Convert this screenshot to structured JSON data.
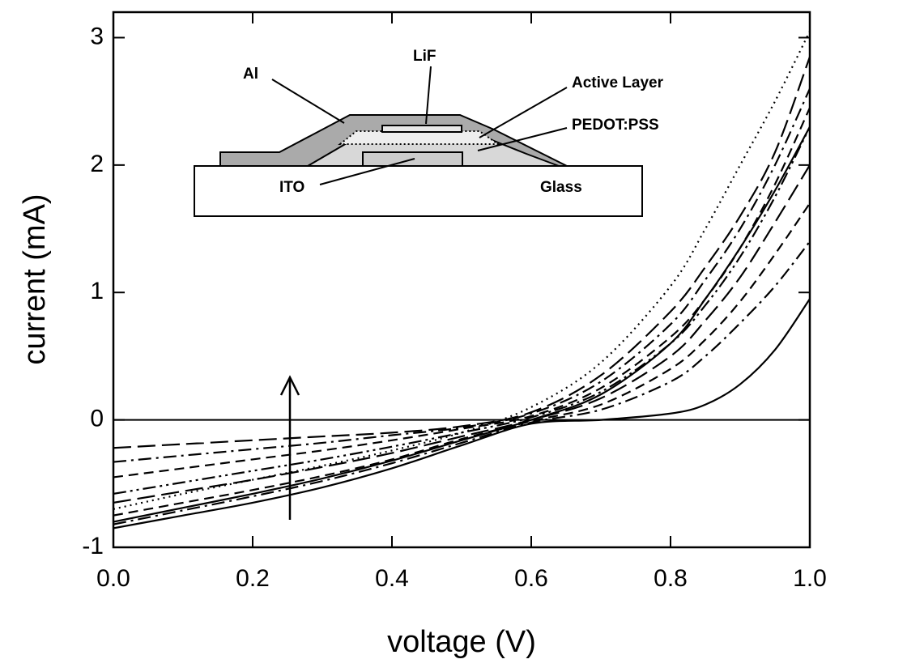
{
  "chart_data": {
    "type": "line",
    "x_label": "voltage (V)",
    "y_label": "current (mA)",
    "x": [
      0,
      0.1,
      0.2,
      0.3,
      0.4,
      0.5,
      0.6,
      0.7,
      0.8,
      0.85,
      0.9,
      0.95,
      1.0
    ],
    "xlim": [
      0,
      1
    ],
    "ylim": [
      -1,
      3.2
    ],
    "xticks": [
      {
        "value": 0,
        "label": "0.0"
      },
      0.2,
      0.4,
      0.6,
      0.8,
      {
        "value": 1,
        "label": "1.0"
      }
    ],
    "yticks": [
      -1,
      0,
      1,
      2,
      3
    ],
    "annotations": [
      "Al",
      "LiF",
      "Active Layer",
      "PEDOT:PSS",
      "ITO",
      "Glass"
    ],
    "series": [
      {
        "color": "#000",
        "dash": "solid",
        "values": [
          -0.85,
          -0.75,
          -0.65,
          -0.53,
          -0.38,
          -0.2,
          -0.03,
          0.0,
          0.05,
          0.12,
          0.28,
          0.55,
          0.95
        ]
      },
      {
        "color": "#000",
        "dash": "dotted",
        "values": [
          -0.7,
          -0.58,
          -0.47,
          -0.36,
          -0.24,
          -0.1,
          0.1,
          0.45,
          1.05,
          1.5,
          2.0,
          2.5,
          3.05
        ]
      },
      {
        "color": "#000",
        "dash": "longdash",
        "values": [
          -0.22,
          -0.19,
          -0.16,
          -0.13,
          -0.1,
          -0.05,
          0.06,
          0.35,
          0.85,
          1.2,
          1.6,
          2.1,
          2.85
        ]
      },
      {
        "color": "#000",
        "dash": "dashdot",
        "values": [
          -0.33,
          -0.28,
          -0.23,
          -0.18,
          -0.12,
          -0.06,
          0.05,
          0.3,
          0.75,
          1.1,
          1.5,
          2.0,
          2.6
        ]
      },
      {
        "color": "#000",
        "dash": "dashed",
        "values": [
          -0.45,
          -0.38,
          -0.31,
          -0.24,
          -0.16,
          -0.07,
          0.03,
          0.25,
          0.65,
          0.95,
          1.35,
          1.85,
          2.45
        ]
      },
      {
        "color": "#000",
        "dash": "dashdotdot",
        "values": [
          -0.58,
          -0.49,
          -0.4,
          -0.31,
          -0.21,
          -0.1,
          0.02,
          0.22,
          0.6,
          0.9,
          1.28,
          1.75,
          2.3
        ]
      },
      {
        "color": "#000",
        "dash": "solid",
        "values": [
          -0.8,
          -0.69,
          -0.58,
          -0.46,
          -0.32,
          -0.16,
          0.0,
          0.2,
          0.6,
          0.95,
          1.35,
          1.8,
          2.3
        ]
      },
      {
        "color": "#000",
        "dash": "longdash",
        "values": [
          -0.65,
          -0.56,
          -0.47,
          -0.37,
          -0.26,
          -0.13,
          0.0,
          0.17,
          0.5,
          0.78,
          1.12,
          1.55,
          2.0
        ]
      },
      {
        "color": "#000",
        "dash": "dashed",
        "values": [
          -0.75,
          -0.65,
          -0.55,
          -0.44,
          -0.31,
          -0.15,
          -0.01,
          0.12,
          0.4,
          0.63,
          0.93,
          1.3,
          1.7
        ]
      },
      {
        "color": "#000",
        "dash": "dashdot",
        "values": [
          -0.82,
          -0.71,
          -0.6,
          -0.48,
          -0.34,
          -0.18,
          -0.02,
          0.08,
          0.3,
          0.5,
          0.76,
          1.05,
          1.4
        ]
      }
    ]
  }
}
